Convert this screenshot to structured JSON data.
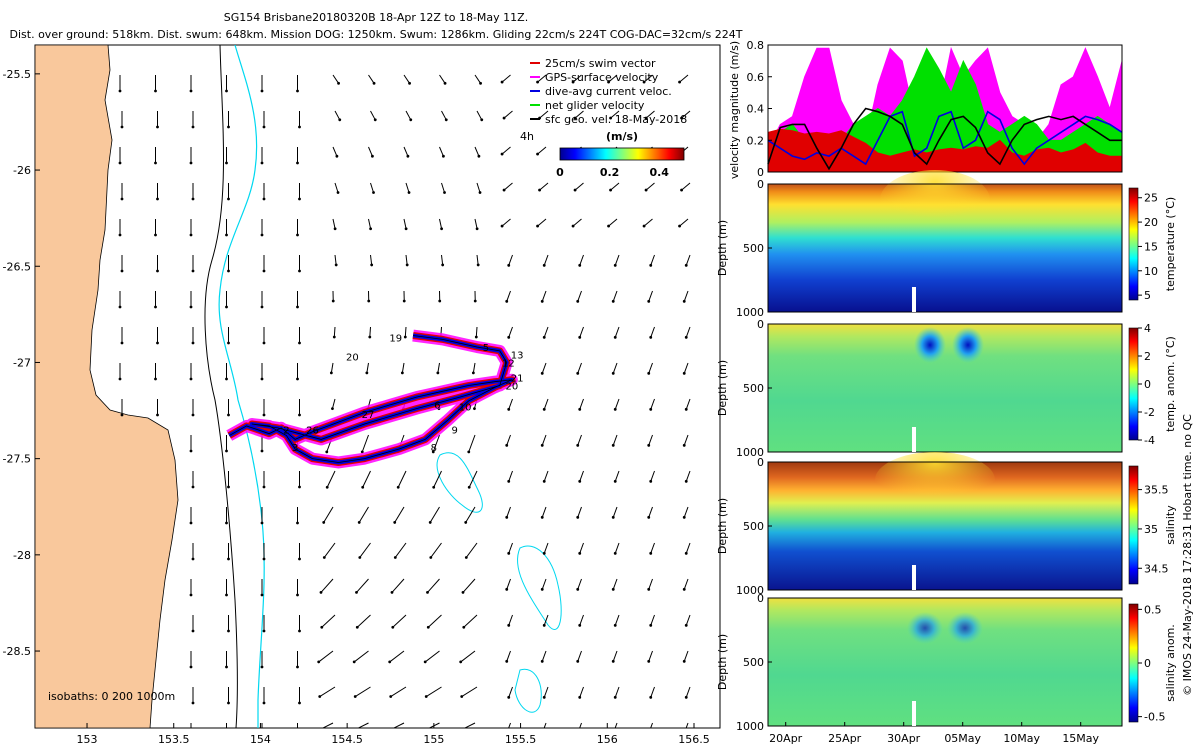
{
  "header": {
    "line1": "SG154 Brisbane20180320B 18-Apr 12Z to 18-May 11Z.",
    "line2": "Dist. over ground: 518km. Dist. swum: 648km. Mission DOG: 1250km. Swum: 1286km. Gliding 22cm/s 224T COG-DAC=32cm/s 224T"
  },
  "colors": {
    "land": "#f9c89c",
    "isobath_200": "#00d8f0",
    "swim_vector": "#e00000",
    "gps_velocity": "#ff00ff",
    "dac": "#0000e0",
    "net_glider": "#00e000",
    "sfc_geo": "#000000"
  },
  "chart_data": [
    {
      "id": "map",
      "type": "map",
      "lon_range": [
        152.7,
        156.65
      ],
      "lat_range": [
        -28.9,
        -25.35
      ],
      "x_ticks": [
        "153",
        "153.5",
        "154",
        "154.5",
        "155",
        "155.5",
        "156",
        "156.5"
      ],
      "x_tick_values": [
        153,
        153.5,
        154,
        154.5,
        155,
        155.5,
        156,
        156.5
      ],
      "y_ticks": [
        "-25.5",
        "-26",
        "-26.5",
        "-27",
        "-27.5",
        "-28",
        "-28.5"
      ],
      "y_tick_values": [
        -25.5,
        -26,
        -26.5,
        -27,
        -27.5,
        -28,
        -28.5
      ],
      "isobaths_label": "isobaths: 0   200   1000m",
      "legend": [
        {
          "label": "25cm/s swim vector",
          "color": "#e00000"
        },
        {
          "label": "GPS-surface velocity",
          "color": "#ff00ff"
        },
        {
          "label": "dive-avg current veloc.",
          "color": "#0000e0"
        },
        {
          "label": "net glider velocity",
          "color": "#00e000"
        },
        {
          "label": "sfc geo. vel. 18-May-2018",
          "color": "#000000"
        }
      ],
      "colorbar": {
        "label": "(m/s)",
        "ticks": [
          "0",
          "0.2",
          "0.4"
        ],
        "tick_values": [
          0,
          0.2,
          0.4
        ],
        "range": [
          0,
          0.5
        ]
      },
      "time_scale_label": "4h",
      "day_labels": [
        {
          "n": "2",
          "lon": 154.15,
          "lat": -27.37
        },
        {
          "n": "3",
          "lon": 154.2,
          "lat": -27.46
        },
        {
          "n": "26",
          "lon": 154.3,
          "lat": -27.37
        },
        {
          "n": "27",
          "lon": 154.62,
          "lat": -27.29
        },
        {
          "n": "8",
          "lon": 155.0,
          "lat": -27.46
        },
        {
          "n": "9",
          "lon": 155.12,
          "lat": -27.37
        },
        {
          "n": "10",
          "lon": 155.18,
          "lat": -27.25
        },
        {
          "n": "6",
          "lon": 155.02,
          "lat": -27.24
        },
        {
          "n": "5",
          "lon": 155.3,
          "lat": -26.94
        },
        {
          "n": "12",
          "lon": 155.43,
          "lat": -27.02
        },
        {
          "n": "13",
          "lon": 155.48,
          "lat": -26.98
        },
        {
          "n": "21",
          "lon": 155.48,
          "lat": -27.1
        },
        {
          "n": "20",
          "lon": 155.45,
          "lat": -27.14
        },
        {
          "n": "19",
          "lon": 154.78,
          "lat": -26.89
        },
        {
          "n": "20",
          "lon": 154.53,
          "lat": -26.99
        }
      ],
      "track": [
        [
          153.82,
          -27.38
        ],
        [
          153.92,
          -27.33
        ],
        [
          154.05,
          -27.37
        ],
        [
          154.12,
          -27.34
        ],
        [
          154.2,
          -27.4
        ],
        [
          154.3,
          -27.36
        ],
        [
          154.45,
          -27.31
        ],
        [
          154.6,
          -27.26
        ],
        [
          154.75,
          -27.22
        ],
        [
          154.9,
          -27.18
        ],
        [
          155.05,
          -27.15
        ],
        [
          155.2,
          -27.12
        ],
        [
          155.35,
          -27.1
        ],
        [
          155.45,
          -27.09
        ],
        [
          155.35,
          -27.13
        ],
        [
          155.2,
          -27.2
        ],
        [
          155.08,
          -27.3
        ],
        [
          154.95,
          -27.4
        ],
        [
          154.8,
          -27.45
        ],
        [
          154.6,
          -27.5
        ],
        [
          154.45,
          -27.52
        ],
        [
          154.3,
          -27.5
        ],
        [
          154.2,
          -27.45
        ],
        [
          154.15,
          -27.38
        ],
        [
          154.05,
          -27.33
        ],
        [
          153.95,
          -27.32
        ],
        [
          154.1,
          -27.34
        ],
        [
          154.35,
          -27.4
        ],
        [
          154.6,
          -27.32
        ],
        [
          154.9,
          -27.24
        ],
        [
          155.15,
          -27.18
        ],
        [
          155.38,
          -27.12
        ],
        [
          155.42,
          -27.0
        ],
        [
          155.38,
          -26.94
        ],
        [
          155.25,
          -26.92
        ],
        [
          155.05,
          -26.88
        ],
        [
          154.88,
          -26.86
        ]
      ]
    },
    {
      "id": "velocity",
      "type": "area",
      "ylabel": "velocity magnitude (m/s)",
      "ylim": [
        0,
        0.8
      ],
      "y_ticks": [
        "0",
        "0.2",
        "0.4",
        "0.6",
        "0.8"
      ],
      "y_tick_values": [
        0,
        0.2,
        0.4,
        0.6,
        0.8
      ],
      "series": [
        {
          "name": "GPS-surface velocity",
          "color": "#ff00ff",
          "values": [
            0.15,
            0.3,
            0.35,
            0.6,
            0.78,
            0.78,
            0.45,
            0.3,
            0.2,
            0.55,
            0.78,
            0.7,
            0.35,
            0.2,
            0.4,
            0.78,
            0.6,
            0.7,
            0.78,
            0.5,
            0.35,
            0.3,
            0.2,
            0.3,
            0.55,
            0.6,
            0.78,
            0.6,
            0.4,
            0.7
          ]
        },
        {
          "name": "net glider velocity",
          "color": "#00e000",
          "values": [
            0.12,
            0.25,
            0.3,
            0.2,
            0.15,
            0.1,
            0.2,
            0.3,
            0.35,
            0.4,
            0.35,
            0.45,
            0.6,
            0.78,
            0.65,
            0.5,
            0.7,
            0.55,
            0.3,
            0.25,
            0.3,
            0.35,
            0.3,
            0.2,
            0.2,
            0.25,
            0.3,
            0.35,
            0.3,
            0.25
          ]
        },
        {
          "name": "25cm/s swim vector",
          "color": "#e00000",
          "values": [
            0.25,
            0.27,
            0.26,
            0.24,
            0.25,
            0.24,
            0.26,
            0.22,
            0.18,
            0.12,
            0.1,
            0.12,
            0.14,
            0.12,
            0.14,
            0.15,
            0.14,
            0.16,
            0.15,
            0.2,
            0.12,
            0.1,
            0.14,
            0.15,
            0.12,
            0.14,
            0.18,
            0.12,
            0.1,
            0.1
          ]
        },
        {
          "name": "dive-avg current veloc.",
          "color": "#0000e0",
          "values": [
            0.2,
            0.15,
            0.1,
            0.08,
            0.12,
            0.1,
            0.15,
            0.1,
            0.05,
            0.2,
            0.35,
            0.38,
            0.1,
            0.15,
            0.35,
            0.38,
            0.15,
            0.2,
            0.38,
            0.33,
            0.15,
            0.05,
            0.15,
            0.2,
            0.25,
            0.3,
            0.35,
            0.33,
            0.3,
            0.25
          ]
        },
        {
          "name": "sfc geo. vel.",
          "color": "#000000",
          "values": [
            0.05,
            0.28,
            0.3,
            0.3,
            0.15,
            0.02,
            0.15,
            0.3,
            0.4,
            0.38,
            0.35,
            0.3,
            0.12,
            0.05,
            0.2,
            0.33,
            0.35,
            0.28,
            0.12,
            0.05,
            0.2,
            0.3,
            0.33,
            0.35,
            0.33,
            0.35,
            0.3,
            0.25,
            0.2,
            0.2
          ]
        }
      ]
    },
    {
      "id": "temperature",
      "type": "heatmap",
      "ylabel": "Depth (m)",
      "cblabel": "temperature (°C)",
      "y_ticks": [
        "0",
        "500",
        "1000"
      ],
      "y_tick_values": [
        0,
        500,
        1000
      ],
      "cb_ticks": [
        "25",
        "20",
        "15",
        "10",
        "5"
      ],
      "cb_tick_values": [
        25,
        20,
        15,
        10,
        5
      ],
      "cb_range": [
        4,
        27
      ]
    },
    {
      "id": "temp_anom",
      "type": "heatmap",
      "ylabel": "Depth (m)",
      "cblabel": "temp. anom. (°C)",
      "y_ticks": [
        "0",
        "500",
        "1000"
      ],
      "y_tick_values": [
        0,
        500,
        1000
      ],
      "cb_ticks": [
        "4",
        "2",
        "0",
        "-2",
        "-4"
      ],
      "cb_tick_values": [
        4,
        2,
        0,
        -2,
        -4
      ],
      "cb_range": [
        -4,
        4
      ]
    },
    {
      "id": "salinity",
      "type": "heatmap",
      "ylabel": "Depth (m)",
      "cblabel": "salinity",
      "y_ticks": [
        "0",
        "500",
        "1000"
      ],
      "y_tick_values": [
        0,
        500,
        1000
      ],
      "cb_ticks": [
        "35.5",
        "35",
        "34.5"
      ],
      "cb_tick_values": [
        35.5,
        35,
        34.5
      ],
      "cb_range": [
        34.3,
        35.8
      ]
    },
    {
      "id": "sal_anom",
      "type": "heatmap",
      "ylabel": "Depth (m)",
      "cblabel": "salinity anom.",
      "y_ticks": [
        "0",
        "500",
        "1000"
      ],
      "y_tick_values": [
        0,
        500,
        1000
      ],
      "cb_ticks": [
        "0.5",
        "0",
        "-0.5"
      ],
      "cb_tick_values": [
        0.5,
        0,
        -0.5
      ],
      "cb_range": [
        -0.55,
        0.55
      ],
      "x_ticks": [
        "20Apr",
        "25Apr",
        "30Apr",
        "05May",
        "10May",
        "15May"
      ],
      "x_tick_values": [
        20,
        25,
        30,
        35,
        40,
        45
      ],
      "time_range_days": [
        18.5,
        48.5
      ]
    }
  ],
  "footer": {
    "credit": "© IMOS 24-May-2018 17:28:31 Hobart time. no QC"
  }
}
